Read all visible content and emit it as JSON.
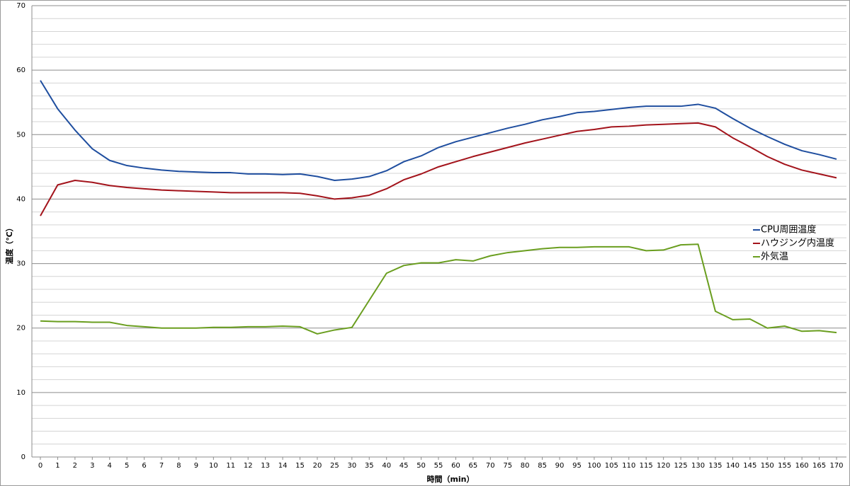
{
  "chart_data": {
    "type": "line",
    "x_label": "時間（min）",
    "y_label": "温度（℃）",
    "categories": [
      "0",
      "1",
      "2",
      "3",
      "4",
      "5",
      "6",
      "7",
      "8",
      "9",
      "10",
      "11",
      "12",
      "13",
      "14",
      "15",
      "20",
      "25",
      "30",
      "35",
      "40",
      "45",
      "50",
      "55",
      "60",
      "65",
      "70",
      "75",
      "80",
      "85",
      "90",
      "95",
      "100",
      "105",
      "110",
      "115",
      "120",
      "125",
      "130",
      "135",
      "140",
      "145",
      "150",
      "155",
      "160",
      "165",
      "170"
    ],
    "series": [
      {
        "name": "CPU周囲温度",
        "color": "#1f4e9f",
        "values": [
          58.4,
          54.0,
          50.7,
          47.8,
          46.0,
          45.2,
          44.8,
          44.5,
          44.3,
          44.2,
          44.1,
          44.1,
          43.9,
          43.9,
          43.8,
          43.9,
          43.5,
          42.9,
          43.1,
          43.5,
          44.4,
          45.8,
          46.7,
          48.0,
          48.9,
          49.6,
          50.3,
          51.0,
          51.6,
          52.3,
          52.8,
          53.4,
          53.6,
          53.9,
          54.2,
          54.4,
          54.4,
          54.4,
          54.7,
          54.1,
          52.5,
          51.0,
          49.7,
          48.5,
          47.5,
          46.9,
          46.2
        ]
      },
      {
        "name": "ハウジング内温度",
        "color": "#a3131b",
        "values": [
          37.4,
          42.2,
          42.9,
          42.6,
          42.1,
          41.8,
          41.6,
          41.4,
          41.3,
          41.2,
          41.1,
          41.0,
          41.0,
          41.0,
          41.0,
          40.9,
          40.5,
          40.0,
          40.2,
          40.6,
          41.6,
          43.0,
          43.9,
          45.0,
          45.8,
          46.6,
          47.3,
          48.0,
          48.7,
          49.3,
          49.9,
          50.5,
          50.8,
          51.2,
          51.3,
          51.5,
          51.6,
          51.7,
          51.8,
          51.2,
          49.5,
          48.1,
          46.6,
          45.4,
          44.5,
          43.9,
          43.3
        ]
      },
      {
        "name": "外気温",
        "color": "#6a9e1f",
        "values": [
          21.1,
          21.0,
          21.0,
          20.9,
          20.9,
          20.4,
          20.2,
          20.0,
          20.0,
          20.0,
          20.1,
          20.1,
          20.2,
          20.2,
          20.3,
          20.2,
          19.1,
          19.7,
          20.1,
          24.3,
          28.5,
          29.7,
          30.1,
          30.1,
          30.6,
          30.4,
          31.2,
          31.7,
          32.0,
          32.3,
          32.5,
          32.5,
          32.6,
          32.6,
          32.6,
          32.0,
          32.1,
          32.9,
          33.0,
          22.6,
          21.3,
          21.4,
          20.0,
          20.3,
          19.5,
          19.6,
          19.3
        ]
      }
    ],
    "ylim": [
      0,
      70
    ],
    "yticks": [
      0,
      10,
      20,
      30,
      40,
      50,
      60,
      70
    ],
    "grid": true,
    "minor_grid": true,
    "legend": "right"
  }
}
